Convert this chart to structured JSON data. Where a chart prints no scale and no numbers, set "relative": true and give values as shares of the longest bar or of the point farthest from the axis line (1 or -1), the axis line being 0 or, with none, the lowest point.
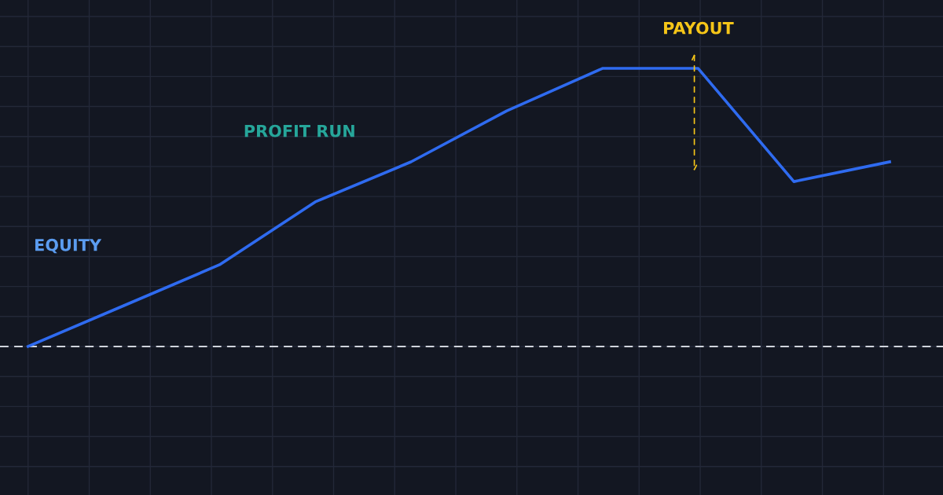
{
  "chart_data": {
    "type": "line",
    "relative": true,
    "categories": [
      null,
      null,
      null,
      null,
      null,
      null,
      null,
      null,
      null,
      null
    ],
    "series": [
      {
        "color": "#2f6bf0",
        "values": [
          0,
          0.147,
          0.294,
          0.52,
          0.664,
          0.847,
          1,
          1,
          0.593,
          0.664
        ]
      }
    ],
    "annotations": [
      "EQUITY",
      "PROFIT RUN",
      "PAYOUT"
    ],
    "ref_lines": [
      {
        "axis": "y",
        "value": 0,
        "color": "#d0d4dc",
        "line_style": "dashed"
      }
    ],
    "grid": true,
    "legend": false,
    "marker": "none",
    "line_style": "solid"
  }
}
